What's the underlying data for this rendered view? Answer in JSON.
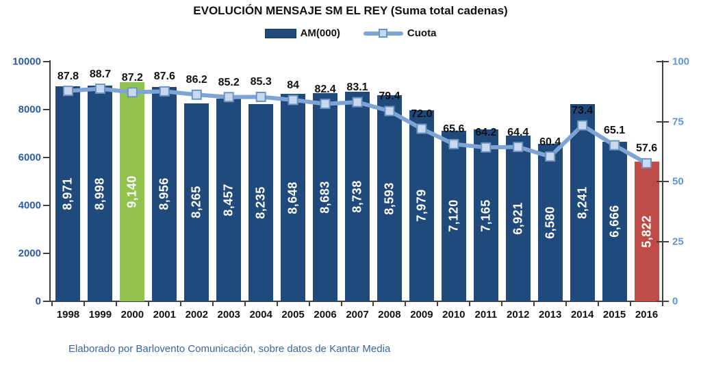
{
  "title": "EVOLUCIÓN MENSAJE SM EL REY (Suma total cadenas)",
  "legend": {
    "am_label": "AM(000)",
    "cuota_label": "Cuota"
  },
  "footer": "Elaborado por Barlovento Comunicación, sobre datos de Kantar Media",
  "colors": {
    "bar_default": "#20497C",
    "bar_2000_highlight": "#92C34F",
    "bar_2016_highlight": "#BF4C49",
    "line": "#7EA4D4",
    "marker_fill": "#C9D9ED",
    "marker_border": "#6B94C6",
    "left_axis_labels": "#2B5AA0",
    "right_axis_labels": "#5E96D2",
    "footer_text": "#3A64A4"
  },
  "chart_data": {
    "type": "bar",
    "subtype": "combo-bar-line",
    "title": "EVOLUCIÓN MENSAJE SM EL REY (Suma total cadenas)",
    "categories": [
      "1998",
      "1999",
      "2000",
      "2001",
      "2002",
      "2003",
      "2004",
      "2005",
      "2006",
      "2007",
      "2008",
      "2009",
      "2010",
      "2011",
      "2012",
      "2013",
      "2014",
      "2015",
      "2016"
    ],
    "series": [
      {
        "name": "AM(000)",
        "type": "bar",
        "axis": "left",
        "values": [
          8971,
          8998,
          9140,
          8956,
          8265,
          8457,
          8235,
          8648,
          8683,
          8738,
          8593,
          7979,
          7120,
          7165,
          6921,
          6580,
          8241,
          6666,
          5822
        ],
        "labels": [
          "8,971",
          "8,998",
          "9,140",
          "8,956",
          "8,265",
          "8,457",
          "8,235",
          "8,648",
          "8,683",
          "8,738",
          "8,593",
          "7,979",
          "7,120",
          "7,165",
          "6,921",
          "6,580",
          "8,241",
          "6,666",
          "5,822"
        ]
      },
      {
        "name": "Cuota",
        "type": "line",
        "axis": "right",
        "values": [
          87.8,
          88.7,
          87.2,
          87.6,
          86.2,
          85.2,
          85.3,
          84,
          82.4,
          83.1,
          79.4,
          72.0,
          65.6,
          64.2,
          64.4,
          60.4,
          73.4,
          65.1,
          57.6
        ],
        "labels": [
          "87.8",
          "88.7",
          "87.2",
          "87.6",
          "86.2",
          "85.2",
          "85.3",
          "84",
          "82.4",
          "83.1",
          "79.4",
          "72.0",
          "65.6",
          "64.2",
          "64.4",
          "60.4",
          "73.4",
          "65.1",
          "57.6"
        ]
      }
    ],
    "left_axis": {
      "min": 0,
      "max": 10000,
      "ticks": [
        "10000",
        "8000",
        "6000",
        "4000",
        "2000",
        "0"
      ]
    },
    "right_axis": {
      "min": 0,
      "max": 100,
      "ticks": [
        "100",
        "75",
        "50",
        "25",
        "0"
      ]
    },
    "bar_color_overrides": {
      "2000": "#92C34F",
      "2016": "#BF4C49"
    },
    "legend_entries": [
      "AM(000)",
      "Cuota"
    ],
    "legend_position": "top",
    "grid": false,
    "xlabel": "",
    "ylabel": ""
  }
}
